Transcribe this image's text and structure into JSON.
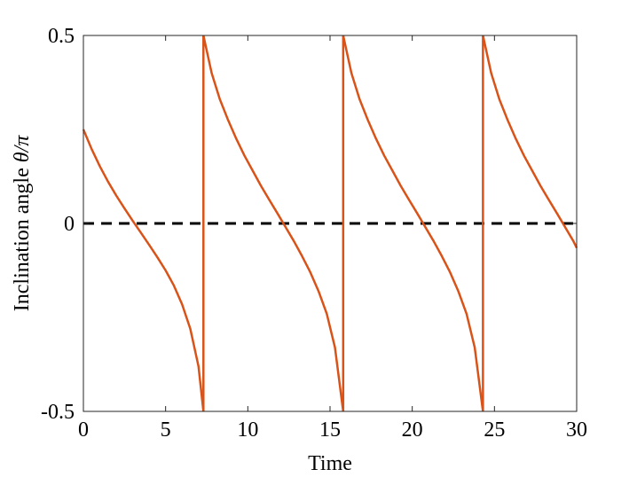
{
  "chart_data": {
    "type": "line",
    "title": "",
    "xlabel": "Time",
    "ylabel_text": "Inclination angle ",
    "ylabel_symbol": "θ/π",
    "xlim": [
      0,
      30
    ],
    "ylim": [
      -0.5,
      0.5
    ],
    "xticks": [
      0,
      5,
      10,
      15,
      20,
      25,
      30
    ],
    "xtick_labels": [
      "0",
      "5",
      "10",
      "15",
      "20",
      "25",
      "30"
    ],
    "yticks": [
      -0.5,
      0,
      0.5
    ],
    "ytick_labels": [
      "-0.5",
      "0",
      "0.5"
    ],
    "grid": false,
    "legend": "none",
    "colors": {
      "series": "#D95319",
      "reference": "#000000"
    },
    "reference_line": {
      "y": 0,
      "style": "dashed"
    },
    "series": [
      {
        "segments": [
          {
            "x": [
              0,
              0.5,
              1,
              1.5,
              2,
              2.5,
              3,
              3.5,
              4,
              4.5,
              5,
              5.5,
              6,
              6.5,
              7,
              7.3
            ],
            "y": [
              0.25,
              0.198,
              0.152,
              0.111,
              0.074,
              0.04,
              0.007,
              -0.025,
              -0.057,
              -0.09,
              -0.125,
              -0.165,
              -0.215,
              -0.28,
              -0.38,
              -0.5
            ]
          },
          {
            "x": [
              7.3,
              7.8,
              8.3,
              8.8,
              9.3,
              9.8,
              10.3,
              10.8,
              11.3,
              11.8,
              12.3,
              12.8,
              13.3,
              13.8,
              14.3,
              14.8,
              15.3,
              15.8
            ],
            "y": [
              0.5,
              0.4,
              0.33,
              0.275,
              0.225,
              0.18,
              0.14,
              0.1,
              0.063,
              0.027,
              -0.01,
              -0.047,
              -0.087,
              -0.13,
              -0.18,
              -0.24,
              -0.33,
              -0.5
            ]
          },
          {
            "x": [
              15.8,
              16.3,
              16.8,
              17.3,
              17.8,
              18.3,
              18.8,
              19.3,
              19.8,
              20.3,
              20.8,
              21.3,
              21.8,
              22.3,
              22.8,
              23.3,
              23.8,
              24.3
            ],
            "y": [
              0.5,
              0.4,
              0.33,
              0.275,
              0.225,
              0.18,
              0.14,
              0.1,
              0.063,
              0.027,
              -0.01,
              -0.047,
              -0.087,
              -0.13,
              -0.18,
              -0.24,
              -0.33,
              -0.5
            ]
          },
          {
            "x": [
              24.3,
              24.8,
              25.3,
              25.8,
              26.3,
              26.8,
              27.3,
              27.8,
              28.3,
              28.8,
              29.3,
              29.8,
              30
            ],
            "y": [
              0.5,
              0.4,
              0.33,
              0.275,
              0.225,
              0.18,
              0.14,
              0.1,
              0.063,
              0.027,
              -0.01,
              -0.047,
              -0.065
            ]
          }
        ]
      }
    ]
  }
}
